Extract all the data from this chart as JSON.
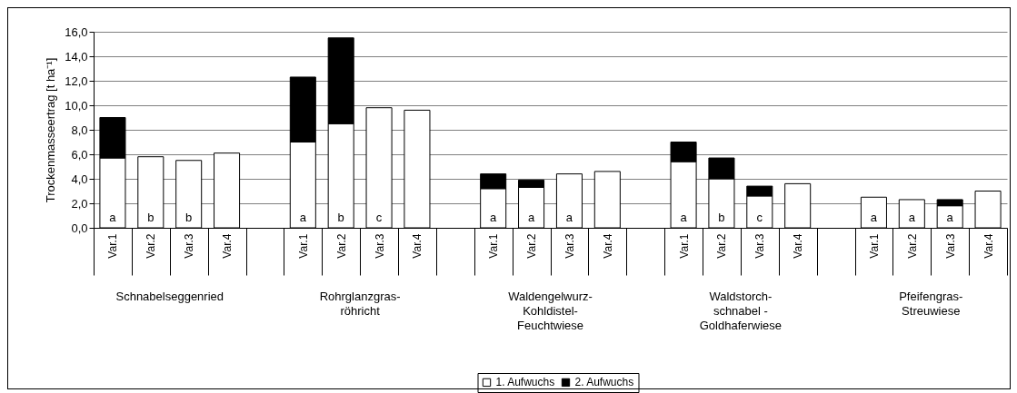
{
  "chart_data": {
    "type": "bar",
    "stacked": true,
    "ylabel": "Trockenmasseertrag [t ha⁻¹]",
    "categories": [
      "Var.1",
      "Var.2",
      "Var.3",
      "Var.4",
      null,
      "Var.1",
      "Var.2",
      "Var.3",
      "Var.4",
      null,
      "Var.1",
      "Var.2",
      "Var.3",
      "Var.4",
      null,
      "Var.1",
      "Var.2",
      "Var.3",
      "Var.4",
      null,
      "Var.1",
      "Var.2",
      "Var.3",
      "Var.4"
    ],
    "series": [
      {
        "name": "1. Aufwuchs",
        "color": "#ffffff",
        "values": [
          5.7,
          5.8,
          5.5,
          6.1,
          null,
          7.0,
          8.5,
          9.8,
          9.6,
          null,
          3.2,
          3.3,
          4.4,
          4.6,
          null,
          5.4,
          4.0,
          2.6,
          3.6,
          null,
          2.5,
          2.3,
          1.8,
          3.0
        ],
        "value_labels": [
          "a",
          "b",
          "b",
          null,
          null,
          "a",
          "b",
          "c",
          null,
          null,
          "a",
          "a",
          "a",
          null,
          null,
          "a",
          "b",
          "c",
          null,
          null,
          "a",
          "a",
          "a",
          null
        ]
      },
      {
        "name": "2. Aufwuchs",
        "color": "#000000",
        "values": [
          3.3,
          null,
          null,
          null,
          null,
          5.3,
          7.0,
          null,
          null,
          null,
          1.2,
          0.6,
          null,
          null,
          null,
          1.6,
          1.7,
          0.8,
          null,
          null,
          null,
          null,
          0.5,
          null
        ]
      }
    ],
    "ylim": [
      0,
      16
    ],
    "yticks": [
      {
        "value": 0,
        "label": "0,0"
      },
      {
        "value": 2,
        "label": "2,0"
      },
      {
        "value": 4,
        "label": "4,0"
      },
      {
        "value": 6,
        "label": "6,0"
      },
      {
        "value": 8,
        "label": "8,0"
      },
      {
        "value": 10,
        "label": "10,0"
      },
      {
        "value": 12,
        "label": "12,0"
      },
      {
        "value": 14,
        "label": "14,0"
      },
      {
        "value": 16,
        "label": "16,0"
      }
    ],
    "grid": "y",
    "legend": "bottom",
    "annotations": [
      "Schnabelseggenried",
      "Rohrglanzgras-\nröhricht",
      "Waldengelwurz-\nKohldistel-\nFeuchtwiese",
      "Waldstorch-\nschnabel -\nGoldhaferwiese",
      "Pfeifengras-\nStreuwiese"
    ]
  }
}
